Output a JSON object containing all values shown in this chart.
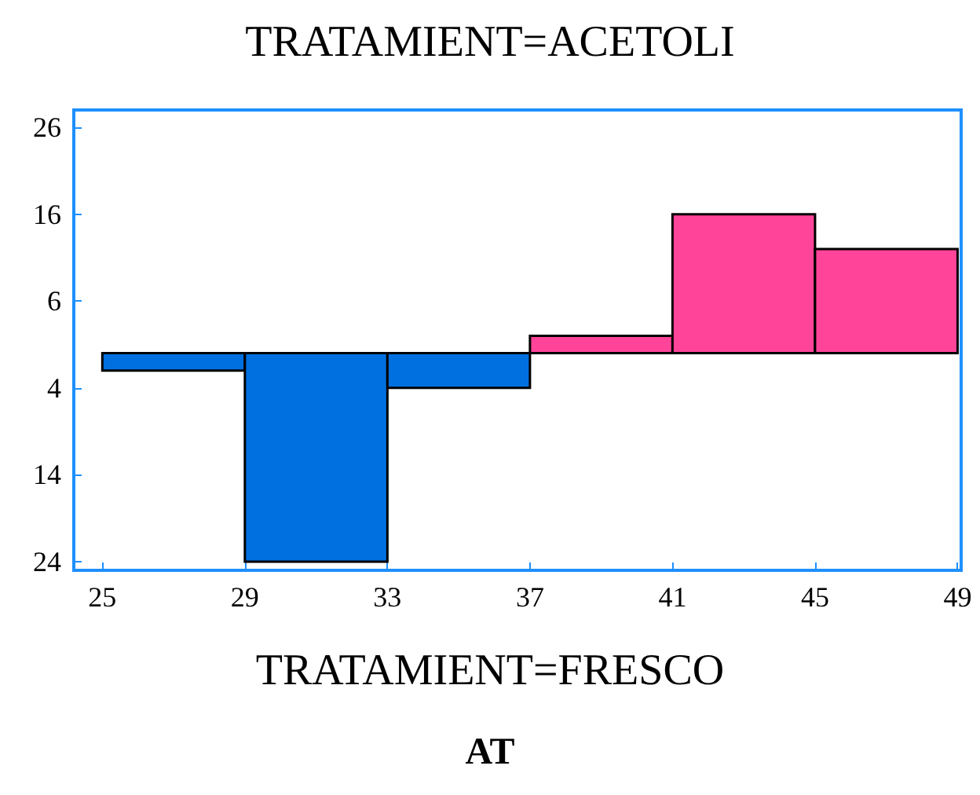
{
  "chart_data": {
    "type": "histogram",
    "xlabel": "AT",
    "annotations": [
      "TRATAMIENT=ACETOLI",
      "TRATAMIENT=FRESCO"
    ],
    "bins": [
      25,
      29,
      33,
      37,
      41,
      45,
      49
    ],
    "series": [
      {
        "color": "#ff4499",
        "values": [
          0,
          0,
          0,
          2,
          16,
          12
        ]
      },
      {
        "color": "#0070e0",
        "values": [
          -2,
          -24,
          -4,
          0,
          0,
          0
        ]
      }
    ],
    "xlim": [
      24.2,
      49.1
    ],
    "xticks": [
      25,
      29,
      33,
      37,
      41,
      45,
      49
    ],
    "ylim": [
      -25,
      28
    ],
    "yticks": [
      26,
      16,
      6,
      {
        "value": -4,
        "label": "4"
      },
      {
        "value": -14,
        "label": "14"
      },
      {
        "value": -24,
        "label": "24"
      }
    ],
    "grid": false
  }
}
